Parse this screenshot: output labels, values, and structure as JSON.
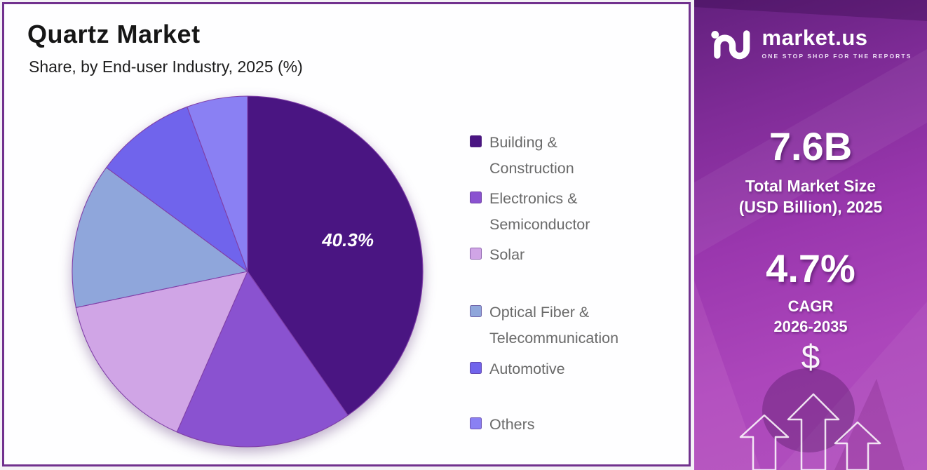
{
  "panel": {
    "title": "Quartz Market",
    "subtitle": "Share, by End-user Industry, 2025 (%)"
  },
  "chart_data": {
    "type": "pie",
    "title": "Quartz Market",
    "subtitle": "Share, by End-user Industry, 2025 (%)",
    "unit": "%",
    "start_angle": "12 o'clock",
    "direction": "clockwise",
    "legend_position": "right",
    "slices": [
      {
        "label": "Building & Construction",
        "legend_lines": [
          "Building &",
          "Construction"
        ],
        "value": 40.3,
        "color": "#4A1582",
        "data_label": "40.3%"
      },
      {
        "label": "Electronics & Semiconductor",
        "legend_lines": [
          "Electronics &",
          "Semiconductor"
        ],
        "value": 16.3,
        "color": "#8A52D0",
        "data_label": ""
      },
      {
        "label": "Solar",
        "legend_lines": [
          "Solar"
        ],
        "value": 15.1,
        "color": "#D0A5E6",
        "data_label": ""
      },
      {
        "label": "Optical Fiber & Telecommunication",
        "legend_lines": [
          "Optical Fiber &",
          "Telecommunication"
        ],
        "value": 13.4,
        "color": "#8FA6DB",
        "data_label": ""
      },
      {
        "label": "Automotive",
        "legend_lines": [
          "Automotive"
        ],
        "value": 9.3,
        "color": "#7064EC",
        "data_label": ""
      },
      {
        "label": "Others",
        "legend_lines": [
          "Others"
        ],
        "value": 5.6,
        "color": "#8A80F3",
        "data_label": ""
      }
    ]
  },
  "sidebar": {
    "logo": {
      "brand": "market.us",
      "tagline": "ONE STOP SHOP FOR THE REPORTS"
    },
    "market_size_value": "7.6B",
    "market_size_label_line1": "Total Market Size",
    "market_size_label_line2": "(USD Billion), 2025",
    "cagr_value": "4.7%",
    "cagr_label_line1": "CAGR",
    "cagr_label_line2": "2026-2035",
    "dollar_symbol": "$"
  },
  "colors": {
    "panel_border": "#71318E",
    "pie_stroke": "#8040A8",
    "legend_text": "#6A6A6A",
    "sidebar_top": "#63207E",
    "sidebar_bottom": "#B150BE"
  }
}
